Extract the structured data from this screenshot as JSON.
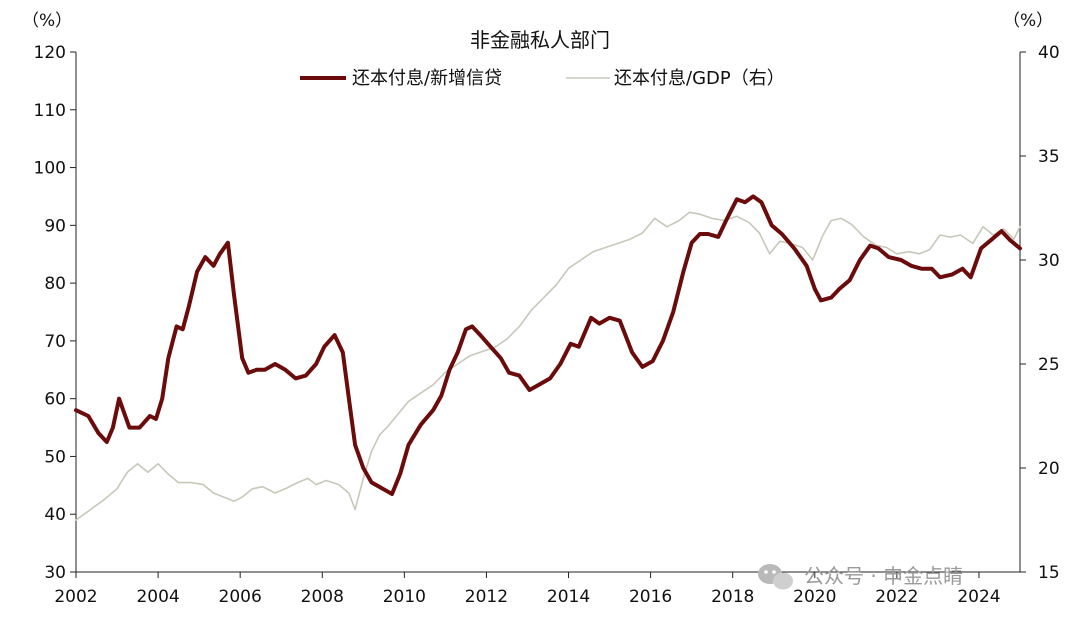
{
  "chart_data": {
    "type": "line",
    "title": "非金融私人部门",
    "left_unit": "（%）",
    "right_unit": "（%）",
    "x_range": [
      2002,
      2025
    ],
    "x_ticks": [
      "2002",
      "2004",
      "2006",
      "2008",
      "2010",
      "2012",
      "2014",
      "2016",
      "2018",
      "2020",
      "2022",
      "2024"
    ],
    "y_left": {
      "min": 30,
      "max": 120,
      "ticks": [
        "30",
        "40",
        "50",
        "60",
        "70",
        "80",
        "90",
        "100",
        "110",
        "120"
      ]
    },
    "y_right": {
      "min": 15,
      "max": 40,
      "ticks": [
        "15",
        "20",
        "25",
        "30",
        "35",
        "40"
      ]
    },
    "legend_placement": "top-center",
    "series": [
      {
        "name": "还本付息/新增信贷",
        "axis": "left",
        "color": "#6b0b0b",
        "points": [
          [
            2002.0,
            58
          ],
          [
            2002.3,
            57
          ],
          [
            2002.55,
            54
          ],
          [
            2002.75,
            52.5
          ],
          [
            2002.9,
            55
          ],
          [
            2003.05,
            60
          ],
          [
            2003.15,
            58
          ],
          [
            2003.3,
            55
          ],
          [
            2003.55,
            55
          ],
          [
            2003.8,
            57
          ],
          [
            2003.95,
            56.5
          ],
          [
            2004.1,
            60
          ],
          [
            2004.25,
            67
          ],
          [
            2004.45,
            72.5
          ],
          [
            2004.6,
            72
          ],
          [
            2004.75,
            76
          ],
          [
            2004.95,
            82
          ],
          [
            2005.15,
            84.5
          ],
          [
            2005.35,
            83
          ],
          [
            2005.5,
            85
          ],
          [
            2005.7,
            87
          ],
          [
            2005.85,
            78
          ],
          [
            2006.05,
            67
          ],
          [
            2006.2,
            64.5
          ],
          [
            2006.4,
            65
          ],
          [
            2006.6,
            65
          ],
          [
            2006.85,
            66
          ],
          [
            2007.1,
            65
          ],
          [
            2007.35,
            63.5
          ],
          [
            2007.6,
            64
          ],
          [
            2007.85,
            66
          ],
          [
            2008.05,
            69
          ],
          [
            2008.3,
            71
          ],
          [
            2008.5,
            68
          ],
          [
            2008.65,
            60
          ],
          [
            2008.8,
            52
          ],
          [
            2009.0,
            48
          ],
          [
            2009.2,
            45.5
          ],
          [
            2009.45,
            44.5
          ],
          [
            2009.7,
            43.5
          ],
          [
            2009.9,
            47
          ],
          [
            2010.1,
            52
          ],
          [
            2010.4,
            55.5
          ],
          [
            2010.7,
            58
          ],
          [
            2010.9,
            60.5
          ],
          [
            2011.1,
            65
          ],
          [
            2011.3,
            68
          ],
          [
            2011.5,
            72
          ],
          [
            2011.65,
            72.5
          ],
          [
            2011.85,
            71
          ],
          [
            2012.1,
            69
          ],
          [
            2012.35,
            67
          ],
          [
            2012.55,
            64.5
          ],
          [
            2012.8,
            64
          ],
          [
            2013.05,
            61.5
          ],
          [
            2013.3,
            62.5
          ],
          [
            2013.55,
            63.5
          ],
          [
            2013.8,
            66
          ],
          [
            2014.05,
            69.5
          ],
          [
            2014.25,
            69
          ],
          [
            2014.55,
            74
          ],
          [
            2014.75,
            73
          ],
          [
            2015.0,
            74
          ],
          [
            2015.25,
            73.5
          ],
          [
            2015.55,
            68
          ],
          [
            2015.8,
            65.5
          ],
          [
            2016.05,
            66.5
          ],
          [
            2016.3,
            70
          ],
          [
            2016.55,
            75
          ],
          [
            2016.8,
            82
          ],
          [
            2017.0,
            87
          ],
          [
            2017.2,
            88.5
          ],
          [
            2017.4,
            88.5
          ],
          [
            2017.65,
            88
          ],
          [
            2017.85,
            91
          ],
          [
            2018.1,
            94.5
          ],
          [
            2018.3,
            94
          ],
          [
            2018.5,
            95
          ],
          [
            2018.7,
            94
          ],
          [
            2018.95,
            90
          ],
          [
            2019.2,
            88.5
          ],
          [
            2019.5,
            86
          ],
          [
            2019.8,
            83
          ],
          [
            2020.0,
            79
          ],
          [
            2020.15,
            77
          ],
          [
            2020.4,
            77.5
          ],
          [
            2020.6,
            79
          ],
          [
            2020.85,
            80.5
          ],
          [
            2021.1,
            84
          ],
          [
            2021.35,
            86.5
          ],
          [
            2021.55,
            86
          ],
          [
            2021.8,
            84.5
          ],
          [
            2022.1,
            84
          ],
          [
            2022.35,
            83
          ],
          [
            2022.6,
            82.5
          ],
          [
            2022.85,
            82.5
          ],
          [
            2023.05,
            81
          ],
          [
            2023.35,
            81.5
          ],
          [
            2023.6,
            82.5
          ],
          [
            2023.8,
            81
          ],
          [
            2024.05,
            86
          ],
          [
            2024.3,
            87.5
          ],
          [
            2024.55,
            89
          ],
          [
            2024.75,
            87.5
          ],
          [
            2025.0,
            86
          ]
        ]
      },
      {
        "name": "还本付息/GDP（右）",
        "axis": "right",
        "color": "#c8c8ba",
        "points": [
          [
            2002.0,
            17.5
          ],
          [
            2002.35,
            18
          ],
          [
            2002.7,
            18.5
          ],
          [
            2003.0,
            19
          ],
          [
            2003.25,
            19.8
          ],
          [
            2003.5,
            20.2
          ],
          [
            2003.75,
            19.8
          ],
          [
            2004.0,
            20.2
          ],
          [
            2004.25,
            19.7
          ],
          [
            2004.5,
            19.3
          ],
          [
            2004.8,
            19.3
          ],
          [
            2005.1,
            19.2
          ],
          [
            2005.35,
            18.8
          ],
          [
            2005.6,
            18.6
          ],
          [
            2005.85,
            18.4
          ],
          [
            2006.05,
            18.6
          ],
          [
            2006.3,
            19.0
          ],
          [
            2006.55,
            19.1
          ],
          [
            2006.85,
            18.8
          ],
          [
            2007.1,
            19.0
          ],
          [
            2007.4,
            19.3
          ],
          [
            2007.65,
            19.5
          ],
          [
            2007.85,
            19.2
          ],
          [
            2008.1,
            19.4
          ],
          [
            2008.4,
            19.2
          ],
          [
            2008.65,
            18.8
          ],
          [
            2008.8,
            18.0
          ],
          [
            2009.0,
            19.5
          ],
          [
            2009.2,
            20.8
          ],
          [
            2009.4,
            21.6
          ],
          [
            2009.6,
            22.0
          ],
          [
            2009.85,
            22.6
          ],
          [
            2010.1,
            23.2
          ],
          [
            2010.4,
            23.6
          ],
          [
            2010.7,
            24.0
          ],
          [
            2011.0,
            24.6
          ],
          [
            2011.3,
            25.0
          ],
          [
            2011.6,
            25.4
          ],
          [
            2011.9,
            25.6
          ],
          [
            2012.2,
            25.8
          ],
          [
            2012.5,
            26.2
          ],
          [
            2012.8,
            26.8
          ],
          [
            2013.1,
            27.6
          ],
          [
            2013.4,
            28.2
          ],
          [
            2013.7,
            28.8
          ],
          [
            2014.0,
            29.6
          ],
          [
            2014.3,
            30.0
          ],
          [
            2014.6,
            30.4
          ],
          [
            2014.9,
            30.6
          ],
          [
            2015.2,
            30.8
          ],
          [
            2015.5,
            31.0
          ],
          [
            2015.8,
            31.3
          ],
          [
            2016.1,
            32.0
          ],
          [
            2016.4,
            31.6
          ],
          [
            2016.7,
            31.9
          ],
          [
            2016.95,
            32.3
          ],
          [
            2017.2,
            32.2
          ],
          [
            2017.5,
            32.0
          ],
          [
            2017.8,
            31.9
          ],
          [
            2018.1,
            32.1
          ],
          [
            2018.4,
            31.8
          ],
          [
            2018.65,
            31.3
          ],
          [
            2018.9,
            30.3
          ],
          [
            2019.15,
            30.9
          ],
          [
            2019.4,
            30.8
          ],
          [
            2019.7,
            30.6
          ],
          [
            2019.95,
            30.0
          ],
          [
            2020.2,
            31.2
          ],
          [
            2020.4,
            31.9
          ],
          [
            2020.65,
            32.0
          ],
          [
            2020.9,
            31.7
          ],
          [
            2021.2,
            31.1
          ],
          [
            2021.5,
            30.7
          ],
          [
            2021.75,
            30.6
          ],
          [
            2022.0,
            30.3
          ],
          [
            2022.3,
            30.4
          ],
          [
            2022.55,
            30.3
          ],
          [
            2022.8,
            30.5
          ],
          [
            2023.05,
            31.2
          ],
          [
            2023.3,
            31.1
          ],
          [
            2023.55,
            31.2
          ],
          [
            2023.85,
            30.8
          ],
          [
            2024.1,
            31.6
          ],
          [
            2024.35,
            31.2
          ],
          [
            2024.6,
            31.5
          ],
          [
            2024.85,
            31.0
          ],
          [
            2025.0,
            31.6
          ]
        ]
      }
    ]
  },
  "watermark": {
    "text": "公众号 · 申金点睛",
    "icon": "wechat-icon"
  }
}
